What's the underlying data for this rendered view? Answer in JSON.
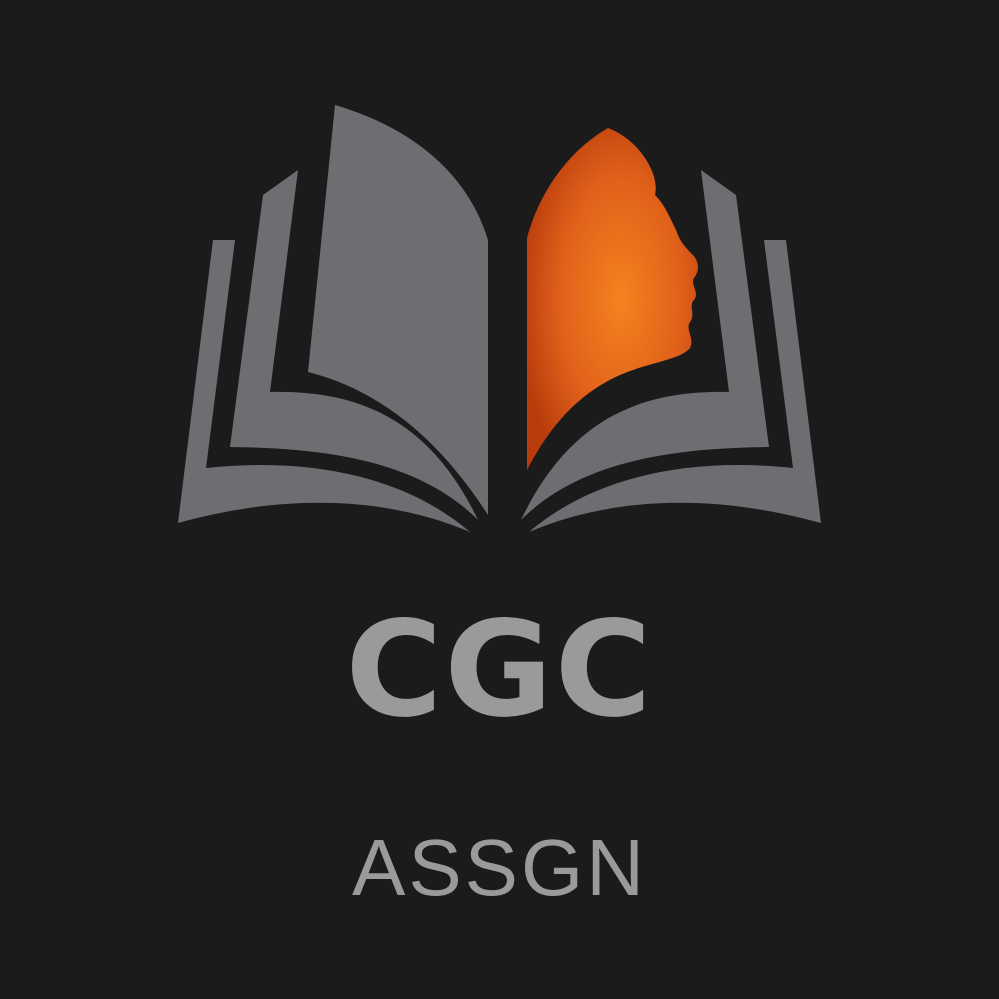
{
  "logo": {
    "name": "CGC",
    "tagline": "ASSGN",
    "icon": "open-book-with-face-profile-icon"
  },
  "colors": {
    "background": "#1b1b1b",
    "page_gray": "#6c6e71",
    "text_gray": "#9a9a9c",
    "accent_orange": "#f07a1e",
    "accent_orange_dark": "#c2410c"
  }
}
